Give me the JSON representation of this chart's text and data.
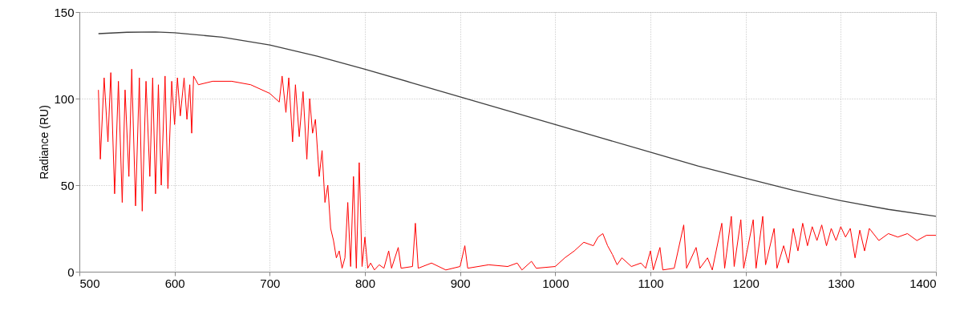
{
  "chart_data": {
    "type": "line",
    "ylabel": "Radiance (RU)",
    "xlim": [
      500,
      1400
    ],
    "ylim": [
      0,
      150
    ],
    "xticks": [
      500,
      600,
      700,
      800,
      900,
      1000,
      1100,
      1200,
      1300,
      1400
    ],
    "yticks": [
      0,
      50,
      100,
      150
    ],
    "grid": true,
    "line_style": "solid",
    "marker": "none",
    "series": [
      {
        "color": "#404040",
        "x": [
          520,
          550,
          580,
          600,
          650,
          700,
          750,
          800,
          850,
          900,
          950,
          1000,
          1050,
          1100,
          1150,
          1200,
          1250,
          1300,
          1350,
          1400
        ],
        "values": [
          137.5,
          138.3,
          138.5,
          138,
          135.5,
          131,
          124.5,
          117,
          109,
          101,
          93,
          85,
          77,
          69,
          61,
          54,
          47,
          41,
          36,
          32
        ]
      },
      {
        "color": "#ff0000",
        "x": [
          520,
          522,
          526,
          530,
          533,
          537,
          541,
          545,
          548,
          552,
          555,
          559,
          563,
          566,
          570,
          574,
          577,
          580,
          583,
          586,
          590,
          593,
          597,
          600,
          603,
          606,
          610,
          613,
          616,
          618,
          620,
          625,
          640,
          660,
          680,
          700,
          710,
          713,
          717,
          720,
          724,
          727,
          731,
          735,
          739,
          742,
          745,
          748,
          752,
          755,
          758,
          761,
          764,
          767,
          770,
          773,
          776,
          779,
          782,
          785,
          788,
          791,
          794,
          797,
          800,
          803,
          806,
          810,
          815,
          820,
          825,
          828,
          835,
          838,
          850,
          853,
          856,
          870,
          885,
          900,
          905,
          908,
          930,
          950,
          960,
          965,
          975,
          980,
          1000,
          1010,
          1020,
          1030,
          1040,
          1045,
          1050,
          1055,
          1060,
          1065,
          1070,
          1080,
          1090,
          1095,
          1100,
          1103,
          1110,
          1113,
          1125,
          1135,
          1138,
          1148,
          1152,
          1160,
          1165,
          1175,
          1178,
          1185,
          1188,
          1195,
          1198,
          1208,
          1211,
          1218,
          1221,
          1230,
          1233,
          1240,
          1245,
          1250,
          1255,
          1260,
          1265,
          1270,
          1275,
          1280,
          1285,
          1290,
          1295,
          1300,
          1305,
          1310,
          1315,
          1320,
          1325,
          1330,
          1340,
          1350,
          1360,
          1370,
          1380,
          1390,
          1400
        ],
        "values": [
          105,
          65,
          112,
          75,
          115,
          45,
          110,
          40,
          105,
          55,
          117,
          38,
          112,
          35,
          110,
          55,
          112,
          45,
          108,
          50,
          113,
          48,
          110,
          85,
          112,
          90,
          112,
          88,
          108,
          80,
          113,
          108,
          110,
          110,
          108,
          103,
          98,
          113,
          92,
          112,
          75,
          108,
          78,
          104,
          65,
          100,
          80,
          88,
          55,
          70,
          40,
          50,
          25,
          18,
          8,
          12,
          2,
          8,
          40,
          3,
          55,
          2,
          63,
          3,
          20,
          2,
          5,
          1,
          4,
          2,
          12,
          2,
          14,
          2,
          3,
          28,
          2,
          5,
          1,
          3,
          15,
          2,
          4,
          3,
          5,
          1,
          6,
          2,
          3,
          8,
          12,
          17,
          15,
          20,
          22,
          15,
          10,
          4,
          8,
          3,
          5,
          2,
          12,
          1,
          14,
          1,
          2,
          27,
          2,
          14,
          2,
          8,
          1,
          28,
          2,
          32,
          3,
          30,
          2,
          30,
          2,
          32,
          4,
          25,
          2,
          15,
          5,
          25,
          12,
          28,
          15,
          26,
          18,
          27,
          15,
          25,
          18,
          26,
          20,
          25,
          8,
          24,
          12,
          25,
          18,
          22,
          20,
          22,
          18,
          21,
          21
        ]
      }
    ]
  }
}
